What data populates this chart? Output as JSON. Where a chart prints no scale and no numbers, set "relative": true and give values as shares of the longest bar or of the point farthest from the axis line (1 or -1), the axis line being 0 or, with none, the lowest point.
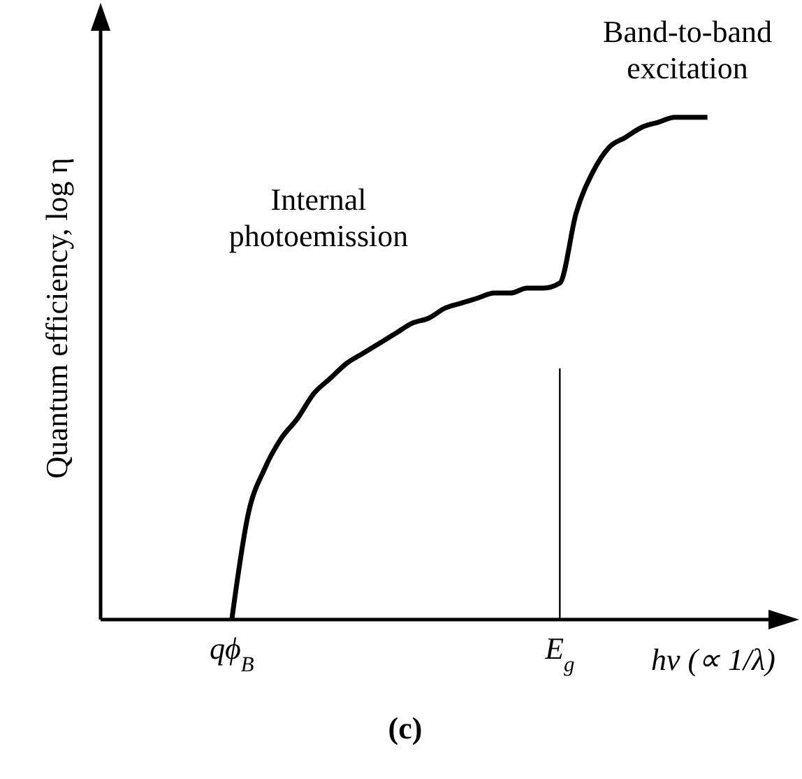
{
  "chart_data": {
    "type": "line",
    "relative": true,
    "xlabel": "hν (∝ 1/λ)",
    "ylabel": "Quantum efficiency, log η",
    "categories": [
      null,
      null,
      null,
      null,
      null,
      null,
      null,
      null,
      "qϕ$_{B}$",
      null,
      null,
      null,
      null,
      null,
      null,
      null,
      null,
      null,
      null,
      null,
      null,
      null,
      null,
      null,
      null,
      null,
      null,
      null,
      "E$_{g}$",
      null,
      null,
      null,
      null,
      null,
      null,
      null,
      null,
      null,
      null,
      null,
      null,
      null,
      null
    ],
    "series": [
      {
        "color": "#000000",
        "values": [
          null,
          null,
          null,
          null,
          null,
          null,
          null,
          null,
          0,
          0.21,
          0.3,
          0.36,
          0.4,
          0.45,
          0.48,
          0.51,
          0.53,
          0.55,
          0.57,
          0.59,
          0.6,
          0.62,
          0.63,
          0.64,
          0.65,
          0.65,
          0.66,
          0.66,
          0.67,
          0.81,
          0.89,
          0.94,
          0.96,
          0.98,
          0.99,
          1,
          1,
          1,
          null,
          null,
          null,
          null,
          null
        ]
      }
    ],
    "ref_lines": [
      {
        "axis": "x",
        "value": "E$_{g}$",
        "color": "#000000"
      }
    ],
    "marker": "none",
    "grid": false,
    "legend": false,
    "annotations": [
      "Internal photoemission",
      "Band-to-band excitation",
      "(c)"
    ]
  }
}
